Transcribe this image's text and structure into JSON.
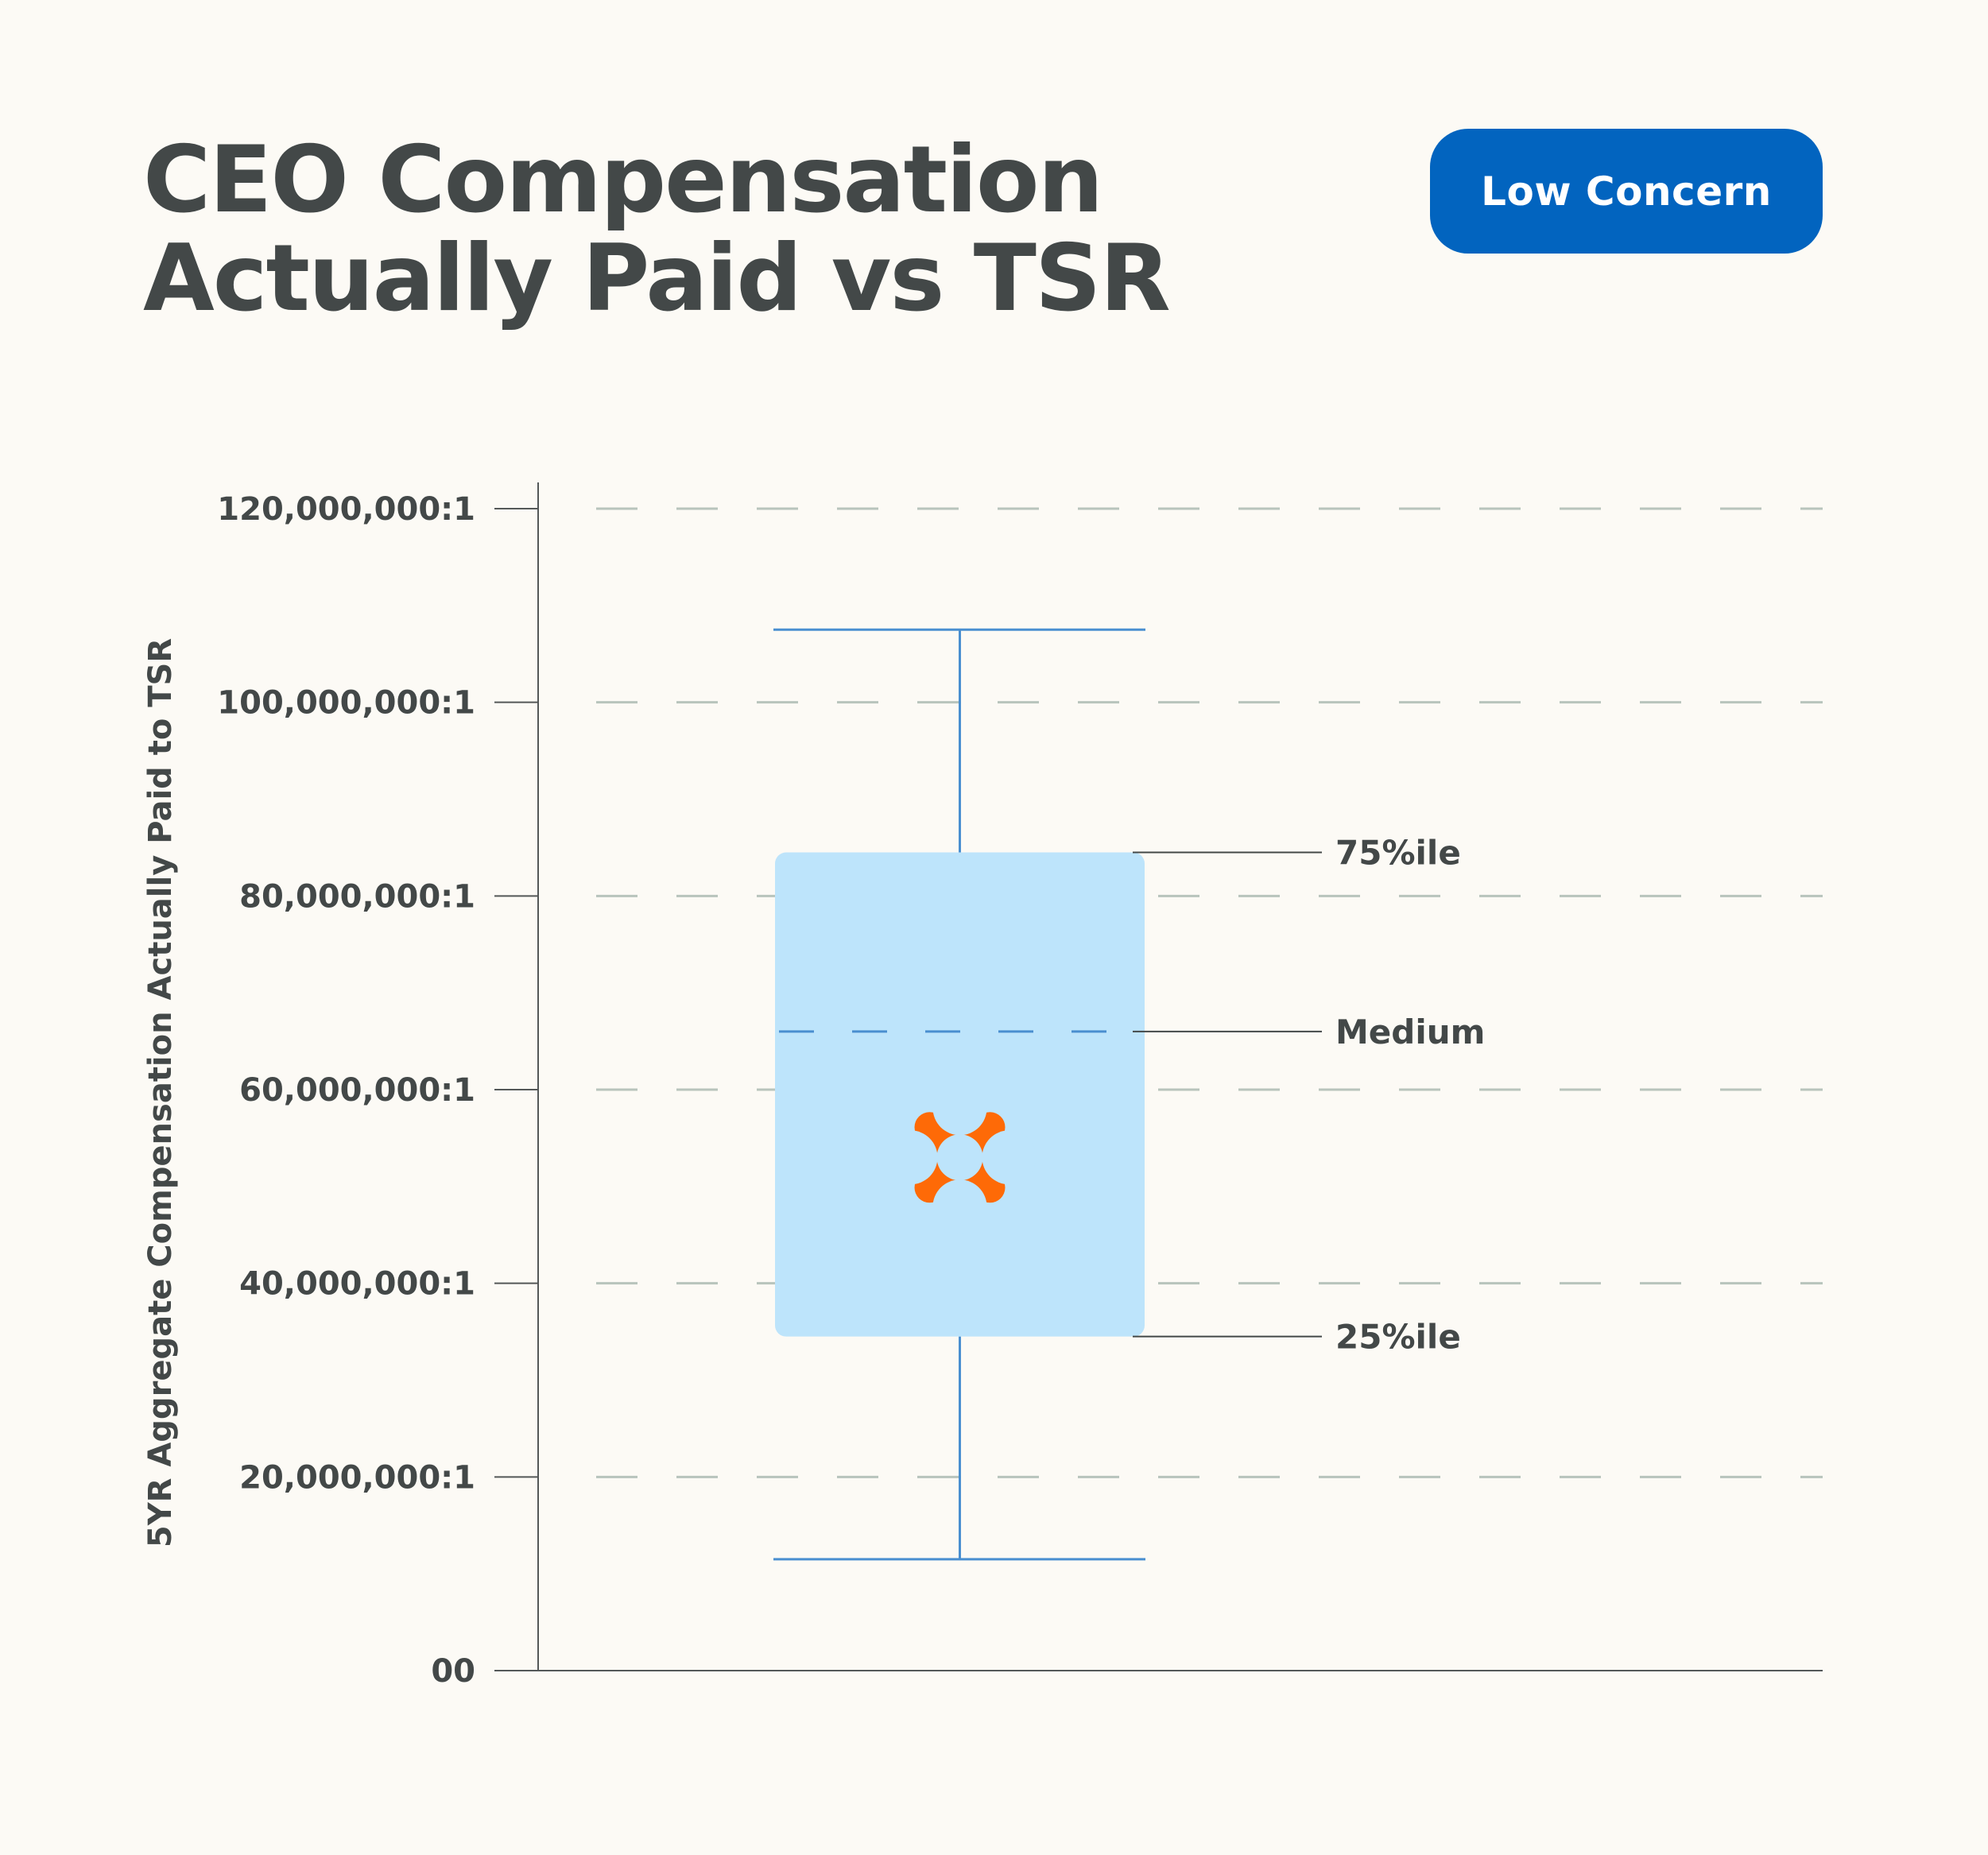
{
  "header": {
    "title": "CEO Compensation Actually Paid vs TSR",
    "badge_label": "Low Concern"
  },
  "colors": {
    "badge": "#0264bf",
    "box_fill": "#bde4fb",
    "whisker": "#4a8fd0",
    "marker": "#fe6a07",
    "grid": "#b8c4bc",
    "axis": "#545858"
  },
  "marker_icon": "company-marker-icon",
  "chart_data": {
    "type": "box",
    "ylabel": "5YR Aggregate Compensation Actually Paid to TSR",
    "ylim": [
      0,
      120000000
    ],
    "y_ticks": [
      {
        "value": 0,
        "label": "00"
      },
      {
        "value": 20000000,
        "label": "20,000,000:1"
      },
      {
        "value": 40000000,
        "label": "40,000,000:1"
      },
      {
        "value": 60000000,
        "label": "60,000,000:1"
      },
      {
        "value": 80000000,
        "label": "80,000,000:1"
      },
      {
        "value": 100000000,
        "label": "100,000,000:1"
      },
      {
        "value": 120000000,
        "label": "120,000,000:1"
      }
    ],
    "grid": true,
    "box": {
      "whisker_low": 11500000,
      "q1": 34500000,
      "median": 66000000,
      "q3": 84500000,
      "whisker_high": 107500000
    },
    "company_value": 53000000,
    "annotations": [
      {
        "ref": "q3",
        "label": "75%ile"
      },
      {
        "ref": "median",
        "label": "Medium"
      },
      {
        "ref": "q1",
        "label": "25%ile"
      }
    ]
  }
}
